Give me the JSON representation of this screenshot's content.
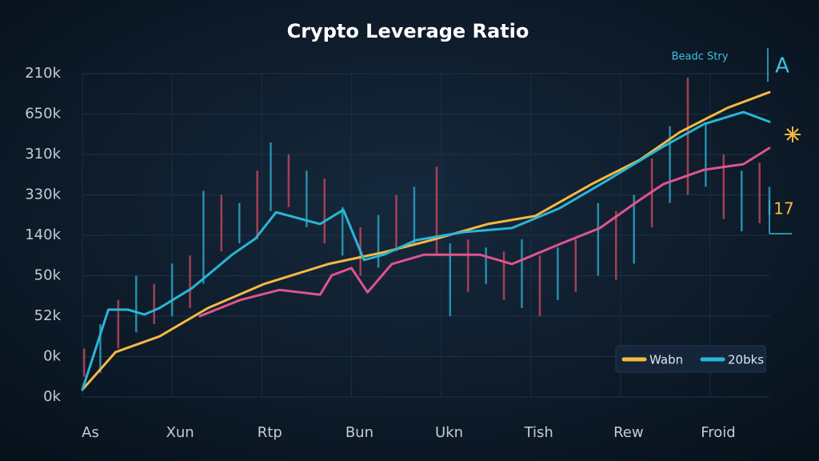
{
  "chart_data": {
    "type": "line",
    "title": "Crypto Leverage Ratio",
    "annotations": [
      "Beadc Stry",
      "A",
      "17"
    ],
    "xlim": [
      0,
      7.66
    ],
    "ylim": [
      0,
      8
    ],
    "grid": true,
    "xticks": [
      {
        "value": 0,
        "label": "As"
      },
      {
        "value": 1,
        "label": "Xun"
      },
      {
        "value": 2,
        "label": "Rtp"
      },
      {
        "value": 3,
        "label": "Bun"
      },
      {
        "value": 4,
        "label": "Ukn"
      },
      {
        "value": 5,
        "label": "Tish"
      },
      {
        "value": 6,
        "label": "Rew"
      },
      {
        "value": 7,
        "label": "Froid"
      }
    ],
    "yticks": [
      {
        "value": 0,
        "label": "0k"
      },
      {
        "value": 1,
        "label": "0k"
      },
      {
        "value": 2,
        "label": "52k"
      },
      {
        "value": 3,
        "label": "50k"
      },
      {
        "value": 4,
        "label": "140k"
      },
      {
        "value": 5,
        "label": "330k"
      },
      {
        "value": 6,
        "label": "310k"
      },
      {
        "value": 7,
        "label": "650k"
      },
      {
        "value": 8,
        "label": "210k"
      }
    ],
    "wicks": {
      "colors": [
        "#c9485b",
        "#2aa9c9"
      ],
      "x": [
        0.02,
        0.2,
        0.4,
        0.6,
        0.8,
        1.0,
        1.2,
        1.35,
        1.55,
        1.75,
        1.95,
        2.1,
        2.3,
        2.5,
        2.7,
        2.9,
        3.1,
        3.3,
        3.5,
        3.7,
        3.95,
        4.1,
        4.3,
        4.5,
        4.7,
        4.9,
        5.1,
        5.3,
        5.5,
        5.75,
        5.95,
        6.15,
        6.35,
        6.55,
        6.75,
        6.95,
        7.15,
        7.35,
        7.55,
        7.66
      ],
      "low": [
        0.5,
        0.6,
        1.2,
        1.6,
        1.8,
        2.0,
        2.2,
        2.8,
        3.6,
        3.8,
        3.9,
        4.6,
        4.7,
        4.2,
        3.8,
        3.5,
        3.0,
        3.2,
        3.6,
        3.8,
        3.5,
        2.0,
        2.6,
        2.8,
        2.4,
        2.2,
        2.0,
        2.4,
        2.6,
        3.0,
        2.9,
        3.3,
        4.2,
        4.8,
        5.0,
        5.2,
        4.4,
        4.1,
        4.3,
        4.5
      ],
      "high": [
        1.2,
        1.8,
        2.4,
        3.0,
        2.8,
        3.3,
        3.5,
        5.1,
        5.0,
        4.8,
        5.6,
        6.3,
        6.0,
        5.6,
        5.4,
        4.7,
        4.2,
        4.5,
        5.0,
        5.2,
        5.7,
        3.8,
        3.9,
        3.7,
        3.6,
        3.9,
        3.5,
        3.7,
        3.9,
        4.8,
        4.6,
        5.0,
        5.9,
        6.7,
        7.9,
        6.8,
        6.0,
        5.6,
        5.8,
        5.2
      ]
    },
    "series": [
      {
        "name": "Wabn",
        "color": "#f5b942",
        "x": [
          0,
          0.37,
          0.86,
          1.4,
          2.02,
          2.74,
          3.36,
          3.89,
          4.52,
          5.05,
          5.68,
          6.21,
          6.66,
          7.19,
          7.66
        ],
        "values": [
          0.18,
          1.11,
          1.5,
          2.2,
          2.79,
          3.29,
          3.58,
          3.88,
          4.28,
          4.48,
          5.27,
          5.86,
          6.55,
          7.15,
          7.54
        ]
      },
      {
        "name": "20bks",
        "color": "#29b6d6",
        "x": [
          0,
          0.29,
          0.51,
          0.69,
          0.86,
          1.22,
          1.67,
          1.93,
          2.16,
          2.65,
          2.91,
          3.14,
          3.36,
          3.72,
          4.25,
          4.79,
          5.32,
          5.86,
          6.48,
          6.93,
          7.37,
          7.66
        ],
        "values": [
          0.18,
          2.16,
          2.16,
          2.04,
          2.2,
          2.69,
          3.52,
          3.92,
          4.57,
          4.28,
          4.63,
          3.39,
          3.52,
          3.88,
          4.08,
          4.18,
          4.67,
          5.37,
          6.2,
          6.75,
          7.05,
          6.81
        ]
      },
      {
        "color": "#e0548e",
        "x": [
          1.31,
          1.76,
          2.2,
          2.65,
          2.78,
          3.0,
          3.18,
          3.45,
          3.81,
          4.43,
          4.79,
          5.32,
          5.77,
          6.21,
          6.48,
          6.93,
          7.37,
          7.66
        ],
        "values": [
          2.0,
          2.4,
          2.65,
          2.53,
          3.01,
          3.19,
          2.59,
          3.29,
          3.52,
          3.52,
          3.29,
          3.78,
          4.18,
          4.87,
          5.27,
          5.62,
          5.76,
          6.16
        ]
      }
    ]
  }
}
